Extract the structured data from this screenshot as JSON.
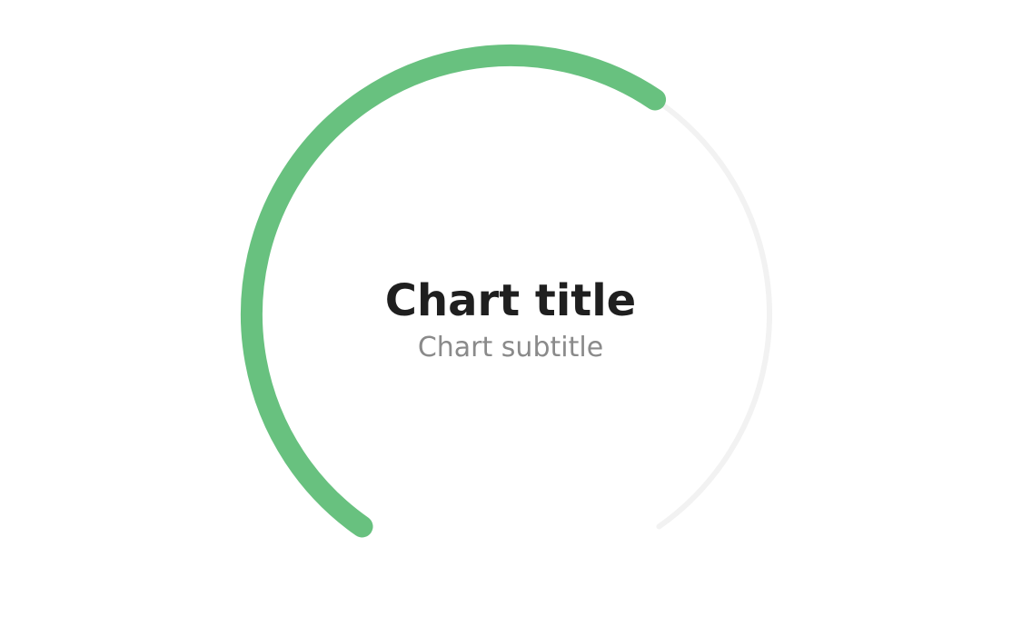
{
  "chart_data": {
    "type": "gauge",
    "title": "Chart title",
    "subtitle": "Chart subtitle",
    "value": 0.617,
    "min": 0,
    "max": 1,
    "start_angle_deg": -145,
    "end_angle_deg": 145,
    "colors": {
      "value_arc": "#68c17f",
      "track_arc": "#f2f2f2",
      "title": "#1f1f1f",
      "subtitle": "#8a8a8a"
    }
  }
}
